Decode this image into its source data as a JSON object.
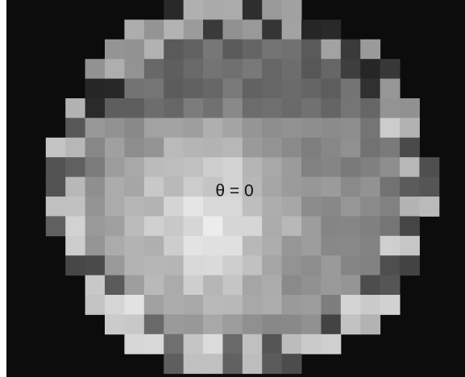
{
  "label": "θ = 0"
}
